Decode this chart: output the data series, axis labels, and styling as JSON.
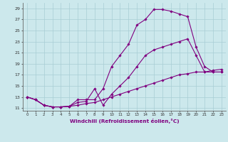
{
  "xlabel": "Windchill (Refroidissement éolien,°C)",
  "bg_color": "#cce8ec",
  "line_color": "#800080",
  "xlim": [
    -0.5,
    23.5
  ],
  "ylim": [
    10.5,
    30.0
  ],
  "xticks": [
    0,
    1,
    2,
    3,
    4,
    5,
    6,
    7,
    8,
    9,
    10,
    11,
    12,
    13,
    14,
    15,
    16,
    17,
    18,
    19,
    20,
    21,
    22,
    23
  ],
  "yticks": [
    11,
    13,
    15,
    17,
    19,
    21,
    23,
    25,
    27,
    29
  ],
  "line1_x": [
    0,
    1,
    2,
    3,
    4,
    5,
    6,
    7,
    8,
    9,
    10,
    11,
    12,
    13,
    14,
    15,
    16,
    17,
    18,
    19,
    20,
    21,
    22,
    23
  ],
  "line1_y": [
    13,
    12.5,
    11.5,
    11.2,
    11.2,
    11.3,
    12.5,
    12.5,
    12.5,
    14.5,
    18.5,
    20.5,
    22.5,
    26.0,
    27.0,
    28.8,
    28.8,
    28.5,
    28.0,
    27.5,
    22.0,
    18.5,
    17.5,
    17.5
  ],
  "line2_x": [
    0,
    1,
    2,
    3,
    4,
    5,
    6,
    7,
    8,
    9,
    10,
    11,
    12,
    13,
    14,
    15,
    16,
    17,
    18,
    19,
    20,
    21,
    22,
    23
  ],
  "line2_y": [
    13,
    12.5,
    11.5,
    11.2,
    11.2,
    11.3,
    12.0,
    12.2,
    14.5,
    11.5,
    13.5,
    15.0,
    16.5,
    18.5,
    20.5,
    21.5,
    22.0,
    22.5,
    23.0,
    23.5,
    20.5,
    17.5,
    17.5,
    17.5
  ],
  "line3_x": [
    0,
    1,
    2,
    3,
    4,
    5,
    6,
    7,
    8,
    9,
    10,
    11,
    12,
    13,
    14,
    15,
    16,
    17,
    18,
    19,
    20,
    21,
    22,
    23
  ],
  "line3_y": [
    13,
    12.5,
    11.5,
    11.2,
    11.2,
    11.3,
    11.5,
    11.8,
    12.0,
    12.5,
    13.0,
    13.5,
    14.0,
    14.5,
    15.0,
    15.5,
    16.0,
    16.5,
    17.0,
    17.2,
    17.5,
    17.5,
    17.8,
    18.0
  ]
}
